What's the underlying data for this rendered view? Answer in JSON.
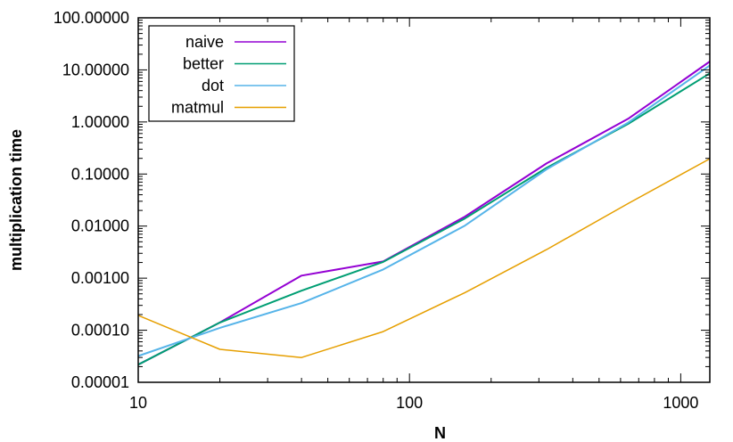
{
  "chart_data": {
    "type": "line",
    "title": "",
    "xlabel": "N",
    "ylabel": "multiplication time",
    "xscale": "log",
    "yscale": "log",
    "xlim": [
      10,
      1280
    ],
    "ylim": [
      1e-05,
      100
    ],
    "x_ticks": [
      {
        "value": 10,
        "label": "10"
      },
      {
        "value": 100,
        "label": "100"
      },
      {
        "value": 1000,
        "label": "1000"
      }
    ],
    "y_ticks": [
      {
        "value": 1e-05,
        "label": "0.00001"
      },
      {
        "value": 0.0001,
        "label": "0.00010"
      },
      {
        "value": 0.001,
        "label": "0.00100"
      },
      {
        "value": 0.01,
        "label": "0.01000"
      },
      {
        "value": 0.1,
        "label": "0.10000"
      },
      {
        "value": 1,
        "label": "1.00000"
      },
      {
        "value": 10,
        "label": "10.00000"
      },
      {
        "value": 100,
        "label": "100.00000"
      }
    ],
    "grid": false,
    "legend_position": "top-left",
    "x": [
      10,
      20,
      40,
      80,
      160,
      320,
      640,
      1280
    ],
    "series": [
      {
        "name": "naive",
        "color": "#9400d3",
        "values": [
          2.18e-05,
          0.000141,
          0.00112,
          0.00209,
          0.0152,
          0.16,
          1.15,
          14.5
        ]
      },
      {
        "name": "better",
        "color": "#009e73",
        "values": [
          2.18e-05,
          0.000141,
          0.000575,
          0.00205,
          0.014,
          0.131,
          0.92,
          8.6
        ]
      },
      {
        "name": "dot",
        "color": "#56b4e9",
        "values": [
          3.2e-05,
          0.000111,
          0.000332,
          0.00147,
          0.0102,
          0.123,
          0.97,
          12.2
        ]
      },
      {
        "name": "matmul",
        "color": "#e69f00",
        "values": [
          0.000193,
          4.3e-05,
          2.99e-05,
          9.4e-05,
          0.000526,
          0.00353,
          0.0271,
          0.197
        ]
      }
    ]
  }
}
